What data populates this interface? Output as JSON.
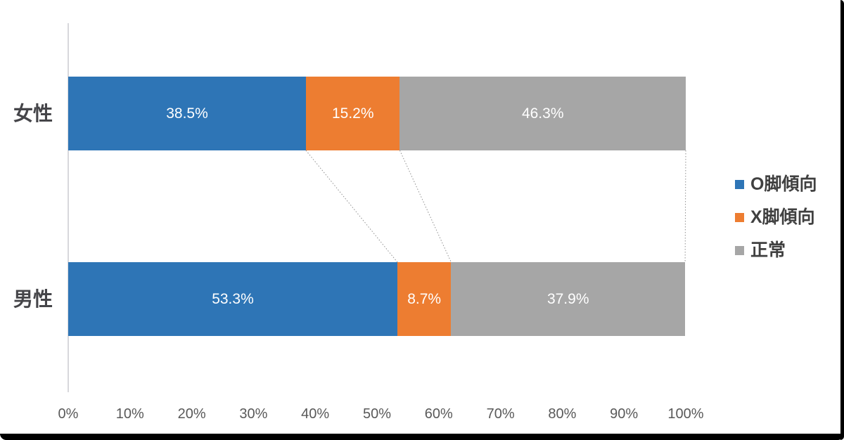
{
  "chart_data": {
    "type": "bar",
    "orientation": "horizontal",
    "stacked_percent": true,
    "title": "",
    "categories": [
      "女性",
      "男性"
    ],
    "series": [
      {
        "name": "O脚傾向",
        "color": "#2e75b6",
        "values": [
          38.5,
          53.3
        ]
      },
      {
        "name": "X脚傾向",
        "color": "#ed7d31",
        "values": [
          15.2,
          8.7
        ]
      },
      {
        "name": "正常",
        "color": "#a6a6a6",
        "values": [
          46.3,
          37.9
        ]
      }
    ],
    "value_labels": [
      [
        "38.5%",
        "15.2%",
        "46.3%"
      ],
      [
        "53.3%",
        "8.7%",
        "37.9%"
      ]
    ],
    "x_ticks": [
      "0%",
      "10%",
      "20%",
      "30%",
      "40%",
      "50%",
      "60%",
      "70%",
      "80%",
      "90%",
      "100%"
    ],
    "xlim": [
      0,
      100
    ],
    "grid": false,
    "legend_position": "right",
    "connector_lines": true
  },
  "colors": {
    "background": "#ffffff",
    "axis_line": "#d8d8dc",
    "tick_label": "#595959",
    "category_label": "#454549",
    "value_label": "#ffffff",
    "legend_label": "#404040",
    "connector": "#909090",
    "frame": "#000000"
  }
}
